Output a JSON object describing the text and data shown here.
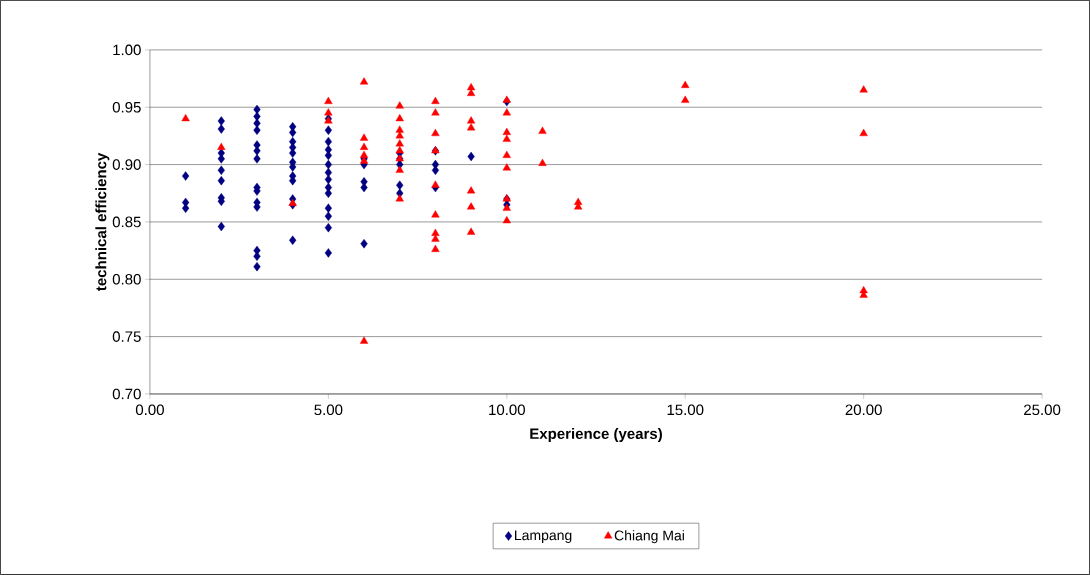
{
  "chart_data": {
    "type": "scatter",
    "xlabel": "Experience (years)",
    "ylabel": "technical efficiency",
    "xlim": [
      0,
      25
    ],
    "ylim": [
      0.7,
      1.0
    ],
    "xticks": [
      {
        "value": 0,
        "label": "0.00"
      },
      {
        "value": 5,
        "label": "5.00"
      },
      {
        "value": 10,
        "label": "10.00"
      },
      {
        "value": 15,
        "label": "15.00"
      },
      {
        "value": 20,
        "label": "20.00"
      },
      {
        "value": 25,
        "label": "25.00"
      }
    ],
    "yticks": [
      {
        "value": 0.7,
        "label": "0.70"
      },
      {
        "value": 0.75,
        "label": "0.75"
      },
      {
        "value": 0.8,
        "label": "0.80"
      },
      {
        "value": 0.85,
        "label": "0.85"
      },
      {
        "value": 0.9,
        "label": "0.90"
      },
      {
        "value": 0.95,
        "label": "0.95"
      },
      {
        "value": 1.0,
        "label": "1.00"
      }
    ],
    "grid": "y",
    "legend": "bottom",
    "series": [
      {
        "name": "Lampang",
        "color": "#000080",
        "marker": "diamond",
        "x": [
          1,
          1,
          1,
          2,
          2,
          2,
          2,
          2,
          2,
          2,
          2,
          2,
          3,
          3,
          3,
          3,
          3,
          3,
          3,
          3,
          3,
          3,
          3,
          3,
          3,
          3,
          4,
          4,
          4,
          4,
          4,
          4,
          4,
          4,
          4,
          4,
          4,
          4,
          5,
          5,
          5,
          5,
          5,
          5,
          5,
          5,
          5,
          5,
          5,
          5,
          5,
          5,
          6,
          6,
          6,
          6,
          6,
          7,
          7,
          7,
          7,
          7,
          8,
          8,
          8,
          8,
          9,
          10,
          10,
          10
        ],
        "values": [
          0.89,
          0.867,
          0.862,
          0.938,
          0.931,
          0.91,
          0.905,
          0.895,
          0.886,
          0.871,
          0.868,
          0.846,
          0.948,
          0.942,
          0.936,
          0.93,
          0.917,
          0.912,
          0.905,
          0.88,
          0.877,
          0.867,
          0.863,
          0.825,
          0.82,
          0.811,
          0.933,
          0.928,
          0.92,
          0.915,
          0.91,
          0.902,
          0.898,
          0.89,
          0.886,
          0.87,
          0.865,
          0.834,
          0.94,
          0.93,
          0.92,
          0.913,
          0.908,
          0.9,
          0.893,
          0.887,
          0.88,
          0.875,
          0.862,
          0.855,
          0.845,
          0.823,
          0.905,
          0.9,
          0.885,
          0.88,
          0.831,
          0.91,
          0.905,
          0.9,
          0.882,
          0.875,
          0.912,
          0.9,
          0.895,
          0.88,
          0.907,
          0.955,
          0.87,
          0.865
        ]
      },
      {
        "name": "Chiang Mai",
        "color": "#ff0000",
        "marker": "triangle",
        "x": [
          1,
          2,
          4,
          5,
          5,
          5,
          6,
          6,
          6,
          6,
          6,
          6,
          7,
          7,
          7,
          7,
          7,
          7,
          7,
          7,
          7,
          8,
          8,
          8,
          8,
          8,
          8,
          8,
          8,
          8,
          9,
          9,
          9,
          9,
          9,
          9,
          9,
          10,
          10,
          10,
          10,
          10,
          10,
          10,
          10,
          10,
          11,
          11,
          12,
          12,
          15,
          15,
          20,
          20,
          20,
          20
        ],
        "values": [
          0.94,
          0.915,
          0.866,
          0.955,
          0.945,
          0.938,
          0.972,
          0.923,
          0.915,
          0.908,
          0.903,
          0.746,
          0.951,
          0.94,
          0.93,
          0.925,
          0.918,
          0.912,
          0.905,
          0.895,
          0.87,
          0.955,
          0.945,
          0.927,
          0.912,
          0.882,
          0.856,
          0.84,
          0.835,
          0.826,
          0.967,
          0.962,
          0.938,
          0.932,
          0.877,
          0.863,
          0.841,
          0.956,
          0.945,
          0.928,
          0.922,
          0.908,
          0.897,
          0.87,
          0.862,
          0.851,
          0.929,
          0.901,
          0.867,
          0.863,
          0.969,
          0.956,
          0.965,
          0.927,
          0.79,
          0.786
        ]
      }
    ]
  }
}
